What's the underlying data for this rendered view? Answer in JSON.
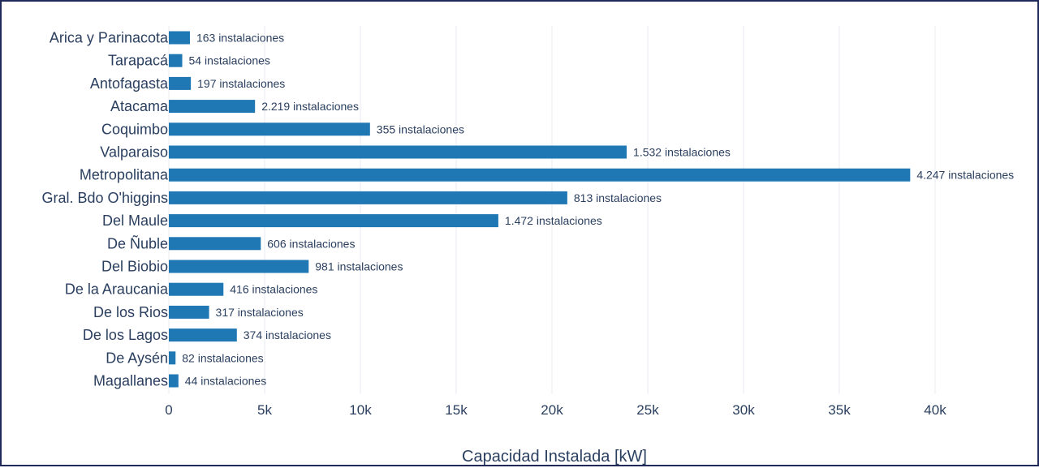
{
  "chart_data": {
    "type": "bar",
    "orientation": "horizontal",
    "xlabel": "Capacidad Instalada [kW]",
    "ylabel": "",
    "xlim": [
      0,
      42500
    ],
    "x_ticks": [
      0,
      5000,
      10000,
      15000,
      20000,
      25000,
      30000,
      35000,
      40000
    ],
    "x_tick_labels": [
      "0",
      "5k",
      "10k",
      "15k",
      "20k",
      "25k",
      "30k",
      "35k",
      "40k"
    ],
    "grid": true,
    "bar_color": "#1f77b4",
    "categories": [
      "Arica y   Parinacota",
      "Tarapacá",
      "Antofagasta",
      "Atacama",
      "Coquimbo",
      "Valparaiso",
      "Metropolitana",
      "Gral. Bdo   O'higgins",
      "Del Maule",
      "De Ñuble",
      "Del Biobio",
      "De la   Araucania",
      "De los Rios",
      "De los Lagos",
      "De Aysén",
      "Magallanes"
    ],
    "values": [
      1100,
      700,
      1150,
      4500,
      10500,
      23900,
      38700,
      20800,
      17200,
      4800,
      7300,
      2850,
      2100,
      3550,
      350,
      500
    ],
    "data_labels": [
      "163 instalaciones",
      "54 instalaciones",
      "197 instalaciones",
      "2.219 instalaciones",
      "355 instalaciones",
      "1.532 instalaciones",
      "4.247 instalaciones",
      "813 instalaciones",
      "1.472 instalaciones",
      "606 instalaciones",
      "981 instalaciones",
      "416 instalaciones",
      "317 instalaciones",
      "374 instalaciones",
      "82 instalaciones",
      "44 instalaciones"
    ]
  }
}
